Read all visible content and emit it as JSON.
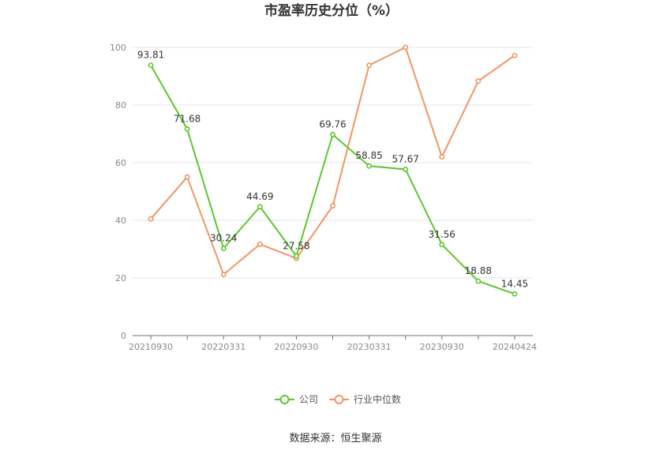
{
  "chart_data": {
    "type": "line",
    "title": "市盈率历史分位（%）",
    "x": [
      "20210930",
      "20211231",
      "20220331",
      "20220630",
      "20220930",
      "20221230",
      "20230331",
      "20230630",
      "20230930",
      "20231229",
      "20240424"
    ],
    "x_tick_labels": [
      "20210930",
      "20220331",
      "20220930",
      "20230331",
      "20230930",
      "20240424"
    ],
    "ylim": [
      0,
      100
    ],
    "y_ticks": [
      0,
      20,
      40,
      60,
      80,
      100
    ],
    "grid": true,
    "legend_position": "bottom",
    "series": [
      {
        "name": "公司",
        "color": "#5cc62f",
        "values": [
          93.81,
          71.68,
          30.24,
          44.69,
          27.58,
          69.76,
          58.85,
          57.67,
          31.56,
          18.88,
          14.45
        ],
        "labels": [
          "93.81",
          "71.68",
          "30.24",
          "44.69",
          "27.58",
          "69.76",
          "58.85",
          "57.67",
          "31.56",
          "18.88",
          "14.45"
        ]
      },
      {
        "name": "行业中位数",
        "color": "#f29463",
        "values": [
          40.5,
          55.0,
          21.2,
          31.7,
          26.8,
          45.0,
          93.8,
          100.0,
          62.0,
          88.3,
          97.2
        ]
      }
    ]
  },
  "footer": {
    "source": "数据来源：恒生聚源"
  }
}
